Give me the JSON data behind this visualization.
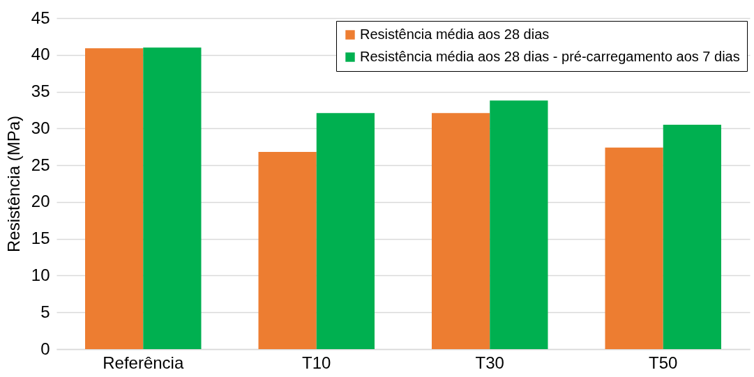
{
  "chart_data": {
    "type": "bar",
    "ylabel": "Resistência (MPa)",
    "categories": [
      "Referência",
      "T10",
      "T30",
      "T50"
    ],
    "series": [
      {
        "name": "Resistência média aos 28 dias",
        "color": "#ed7d31",
        "values": [
          40.9,
          26.8,
          32.1,
          27.4
        ]
      },
      {
        "name": "Resistência média aos 28 dias - pré-carregamento aos 7 dias",
        "color": "#00b050",
        "values": [
          41.0,
          32.1,
          33.8,
          30.5
        ]
      }
    ],
    "ylim": [
      0,
      45
    ],
    "yticks": [
      0,
      5,
      10,
      15,
      20,
      25,
      30,
      35,
      40,
      45
    ],
    "grid": "y",
    "legend": "top right"
  }
}
